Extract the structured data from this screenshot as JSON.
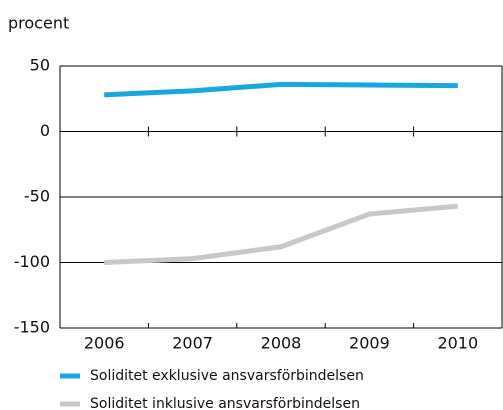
{
  "chart_data": {
    "type": "line",
    "y_label": "procent",
    "categories": [
      "2006",
      "2007",
      "2008",
      "2009",
      "2010"
    ],
    "series": [
      {
        "name": "Soliditet exklusive ansvarsförbindelsen",
        "color": "#1aa7dc",
        "values": [
          28,
          31,
          36,
          35.5,
          35
        ]
      },
      {
        "name": "Soliditet inklusive ansvarsförbindelsen",
        "color": "#c8c8c8",
        "values": [
          -100,
          -97,
          -88,
          -63,
          -57
        ]
      }
    ],
    "ylim": [
      -150,
      50
    ],
    "yticks": [
      50,
      0,
      -50,
      -100,
      -150
    ],
    "grid": true
  }
}
